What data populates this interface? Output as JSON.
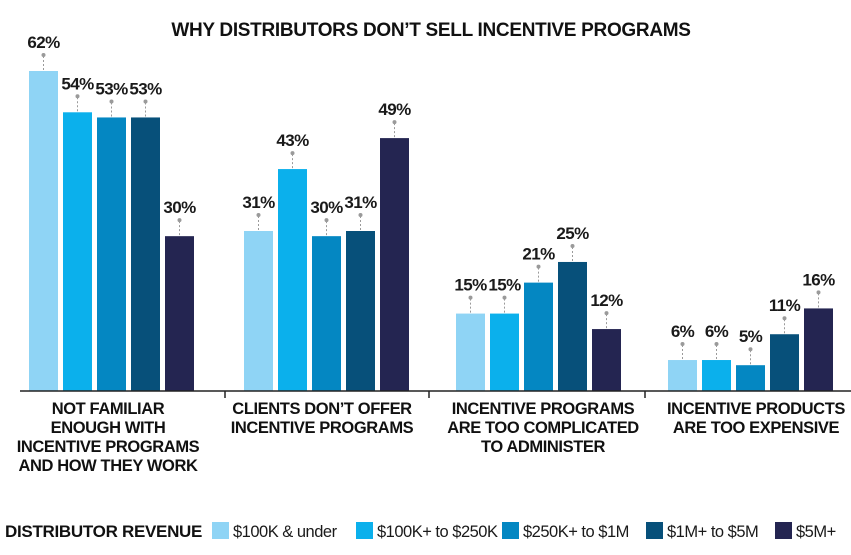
{
  "chart_data": {
    "type": "bar",
    "title": "WHY DISTRIBUTORS DON’T SELL INCENTIVE PROGRAMS",
    "categories": [
      [
        "NOT FAMILIAR",
        "ENOUGH WITH",
        "INCENTIVE PROGRAMS",
        "AND HOW THEY WORK"
      ],
      [
        "CLIENTS DON’T OFFER",
        "INCENTIVE PROGRAMS"
      ],
      [
        "INCENTIVE PROGRAMS",
        "ARE TOO COMPLICATED",
        "TO ADMINISTER"
      ],
      [
        "INCENTIVE PRODUCTS",
        "ARE TOO EXPENSIVE"
      ]
    ],
    "legend_title": "DISTRIBUTOR REVENUE",
    "legend_position": "bottom",
    "value_suffix": "%",
    "ylim": [
      0,
      62
    ],
    "grid": false,
    "series": [
      {
        "name": "$100K & under",
        "color": "#8fd4f5",
        "values": [
          62,
          31,
          15,
          6
        ]
      },
      {
        "name": "$100K+ to $250K",
        "color": "#0bb0ec",
        "values": [
          54,
          43,
          15,
          6
        ]
      },
      {
        "name": "$250K+ to $1M",
        "color": "#0487c2",
        "values": [
          53,
          30,
          21,
          5
        ]
      },
      {
        "name": "$1M+ to $5M",
        "color": "#07507a",
        "values": [
          53,
          31,
          25,
          11
        ]
      },
      {
        "name": "$5M+",
        "color": "#242551",
        "values": [
          30,
          49,
          12,
          16
        ]
      }
    ]
  }
}
